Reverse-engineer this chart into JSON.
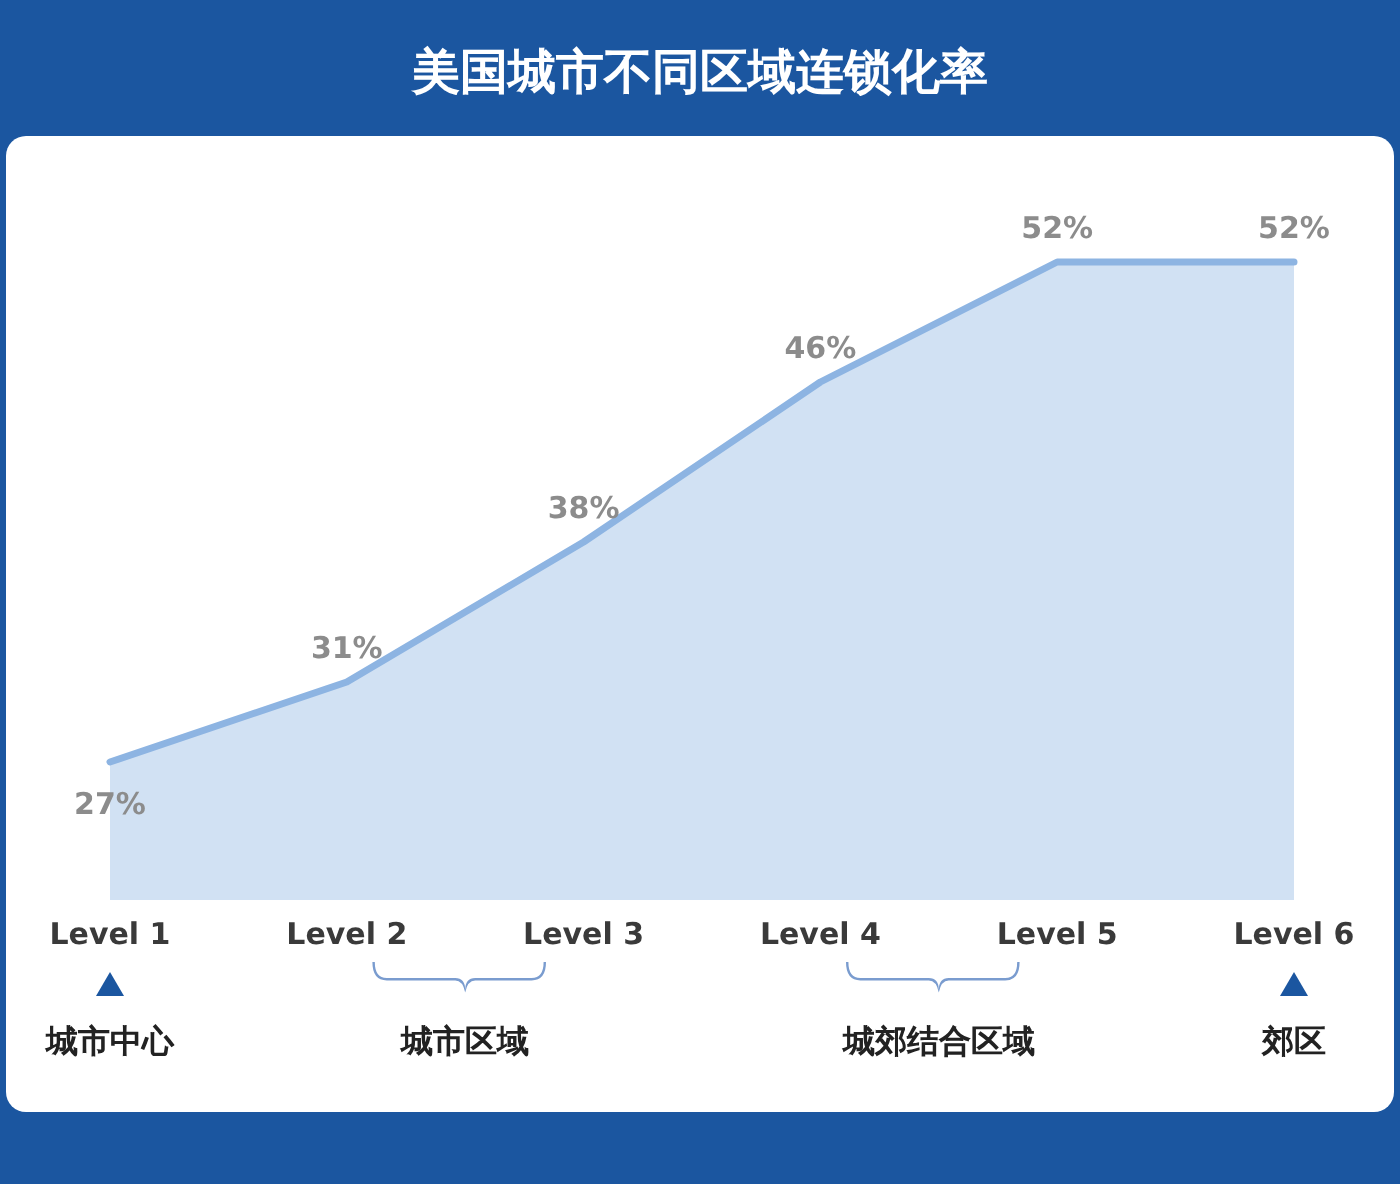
{
  "chart_data": {
    "type": "area",
    "title": "美国城市不同区域连锁化率",
    "categories": [
      "Level 1",
      "Level 2",
      "Level 3",
      "Level 4",
      "Level 5",
      "Level 6"
    ],
    "series": [
      {
        "color": "#8db4e2",
        "values": [
          27,
          31,
          38,
          46,
          52,
          52
        ],
        "value_labels": [
          "27%",
          "31%",
          "38%",
          "46%",
          "52%",
          "52%"
        ]
      }
    ],
    "annotations": [
      "城市中心",
      "城市区域",
      "城郊结合区域",
      "郊区"
    ]
  }
}
